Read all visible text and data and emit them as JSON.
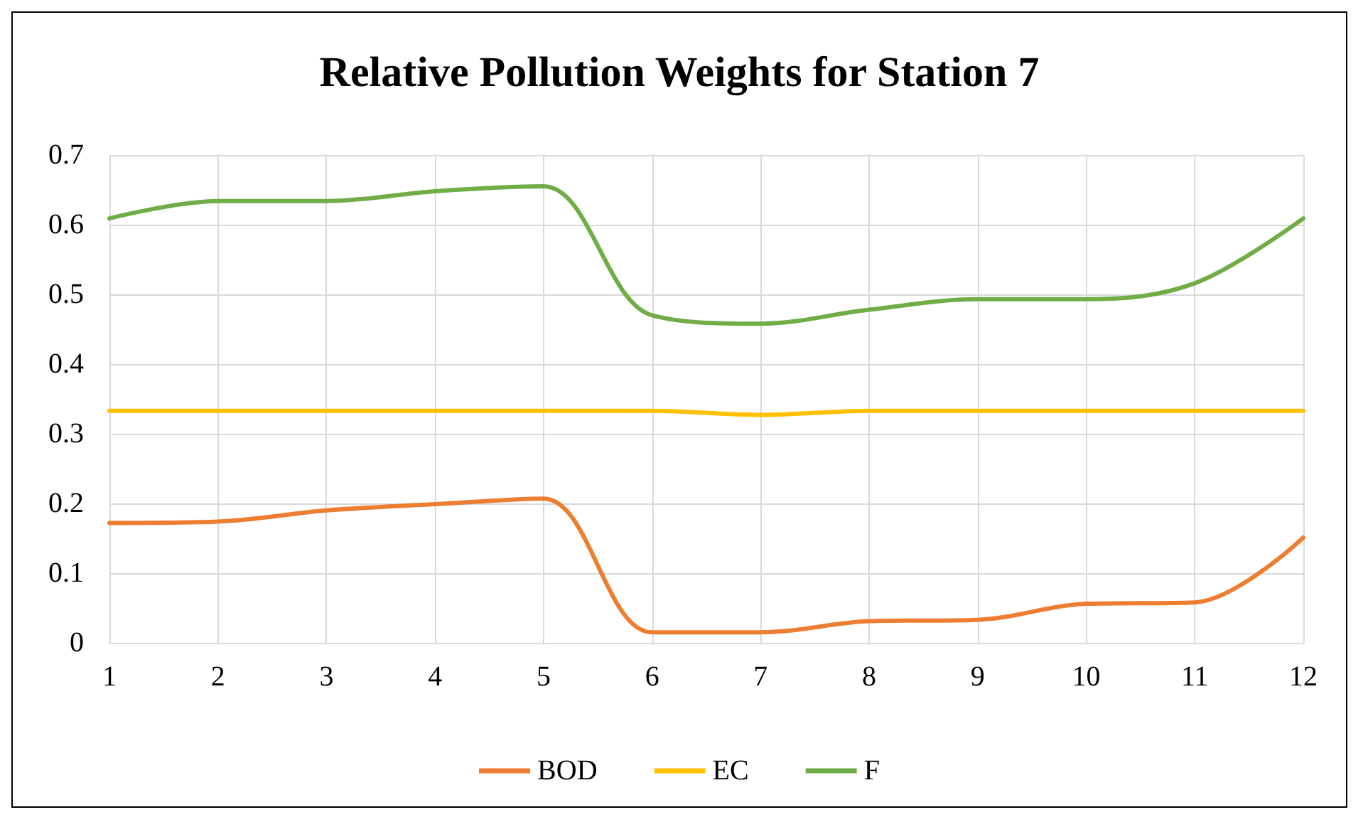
{
  "chart_data": {
    "type": "line",
    "title": "Relative Pollution Weights for Station 7",
    "x": [
      1,
      2,
      3,
      4,
      5,
      6,
      7,
      8,
      9,
      10,
      11,
      12
    ],
    "series": [
      {
        "name": "BOD",
        "color": "#ed7d31",
        "values": [
          0.172,
          0.174,
          0.19,
          0.199,
          0.207,
          0.015,
          0.015,
          0.031,
          0.033,
          0.056,
          0.058,
          0.151
        ]
      },
      {
        "name": "EC",
        "color": "#ffc000",
        "values": [
          0.333,
          0.333,
          0.333,
          0.333,
          0.333,
          0.333,
          0.327,
          0.333,
          0.333,
          0.333,
          0.333,
          0.333
        ]
      },
      {
        "name": "F",
        "color": "#70ad47",
        "values": [
          0.609,
          0.634,
          0.634,
          0.648,
          0.655,
          0.47,
          0.458,
          0.478,
          0.493,
          0.493,
          0.516,
          0.609
        ]
      }
    ],
    "xlim": [
      1,
      12
    ],
    "xticks": [
      1,
      2,
      3,
      4,
      5,
      6,
      7,
      8,
      9,
      10,
      11,
      12
    ],
    "ylim": [
      0,
      0.7
    ],
    "yticks": [
      0,
      0.1,
      0.2,
      0.3,
      0.4,
      0.5,
      0.6,
      0.7
    ],
    "grid": true,
    "legend": "bottom",
    "marker": "none",
    "line_style": "solid"
  }
}
